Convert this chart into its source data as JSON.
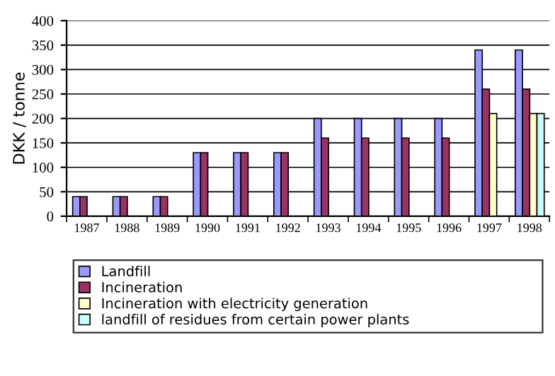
{
  "chart_data": {
    "type": "bar",
    "ylabel": "DKK / tonne",
    "categories": [
      "1987",
      "1988",
      "1989",
      "1990",
      "1991",
      "1992",
      "1993",
      "1994",
      "1995",
      "1996",
      "1997",
      "1998"
    ],
    "series": [
      {
        "name": "Landfill",
        "color": "#9999ff",
        "values": [
          40,
          40,
          40,
          130,
          130,
          130,
          200,
          200,
          200,
          200,
          340,
          340
        ]
      },
      {
        "name": "Incineration",
        "color": "#993366",
        "values": [
          40,
          40,
          40,
          130,
          130,
          130,
          160,
          160,
          160,
          160,
          260,
          260
        ]
      },
      {
        "name": "Incineration with electricity generation",
        "color": "#ffffcc",
        "values": [
          null,
          null,
          null,
          null,
          null,
          null,
          null,
          null,
          null,
          null,
          210,
          210
        ]
      },
      {
        "name": "landfill of residues from certain power plants",
        "color": "#ccffff",
        "values": [
          null,
          null,
          null,
          null,
          null,
          null,
          null,
          null,
          null,
          null,
          null,
          210
        ]
      }
    ],
    "ylim": [
      0,
      400
    ],
    "yticks": [
      0,
      50,
      100,
      150,
      200,
      250,
      300,
      350,
      400
    ],
    "grid": "y",
    "legend": "bottom"
  }
}
